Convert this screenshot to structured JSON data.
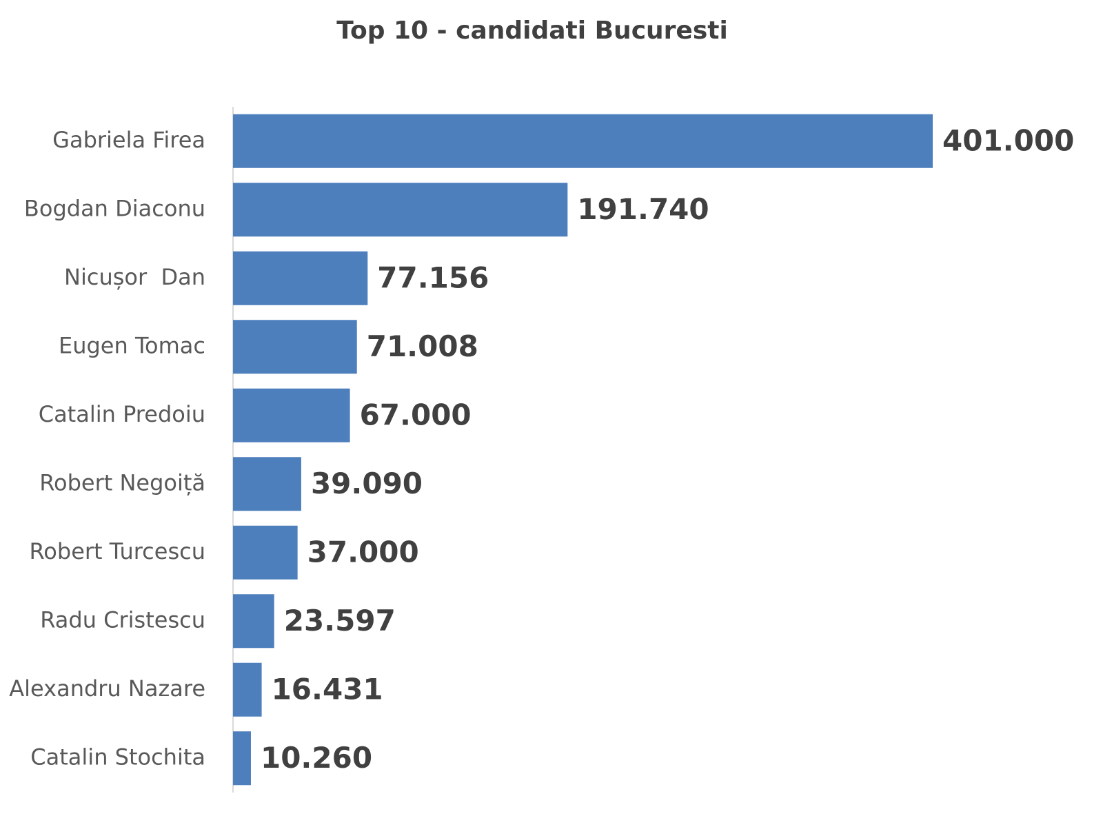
{
  "chart_data": {
    "type": "bar",
    "orientation": "horizontal",
    "title": "Top 10 - candidati Bucuresti",
    "categories": [
      "Gabriela Firea",
      "Bogdan Diaconu",
      "Nicușor  Dan",
      "Eugen Tomac",
      "Catalin Predoiu",
      "Robert Negoiță",
      "Robert Turcescu",
      "Radu Cristescu",
      "Alexandru Nazare",
      "Catalin Stochita"
    ],
    "values": [
      401000,
      191740,
      77156,
      71008,
      67000,
      39090,
      37000,
      23597,
      16431,
      10260
    ],
    "value_labels": [
      "401.000",
      "191.740",
      "77.156",
      "71.008",
      "67.000",
      "39.090",
      "37.000",
      "23.597",
      "16.431",
      "10.260"
    ],
    "color": "#4e7fbd"
  }
}
